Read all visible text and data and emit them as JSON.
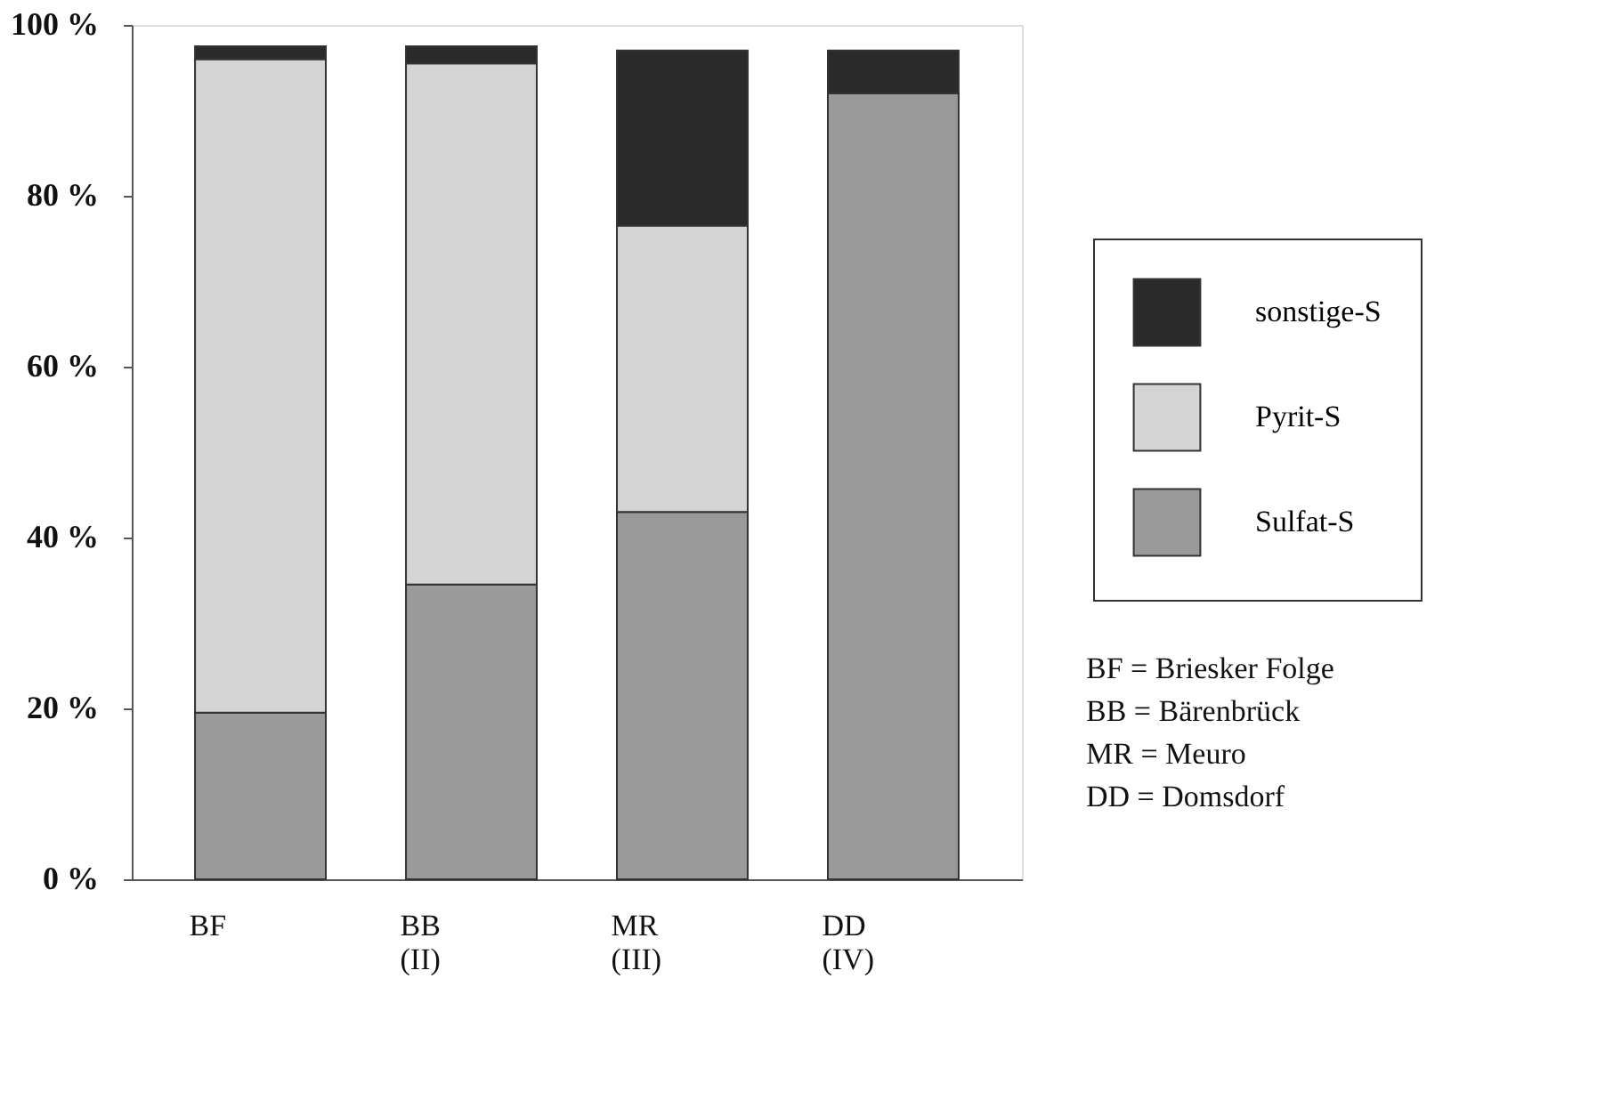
{
  "chart_data": {
    "type": "bar",
    "stacked": true,
    "categories": [
      "BF",
      "BB (II)",
      "MR (III)",
      "DD (IV)"
    ],
    "series": [
      {
        "name": "Sulfat-S",
        "color": "#9a9a9a",
        "values": [
          19.5,
          34.5,
          43,
          92
        ]
      },
      {
        "name": "Pyrit-S",
        "color": "#d4d4d4",
        "values": [
          76.5,
          61,
          33.5,
          0
        ]
      },
      {
        "name": "sonstige-S",
        "color": "#2a2a2a",
        "values": [
          1.5,
          2,
          20.5,
          5
        ]
      }
    ],
    "ylim": [
      0,
      100
    ],
    "yticks": [
      {
        "value": 0,
        "label": "0 %"
      },
      {
        "value": 20,
        "label": "20 %"
      },
      {
        "value": 40,
        "label": "40 %"
      },
      {
        "value": 60,
        "label": "60 %"
      },
      {
        "value": 80,
        "label": "80 %"
      },
      {
        "value": 100,
        "label": "100 %"
      }
    ],
    "grid": false,
    "legend": "right",
    "annotations": [
      "BF = Briesker Folge",
      "BB = Bärenbrück",
      "MR = Meuro",
      "DD = Domsdorf"
    ]
  }
}
